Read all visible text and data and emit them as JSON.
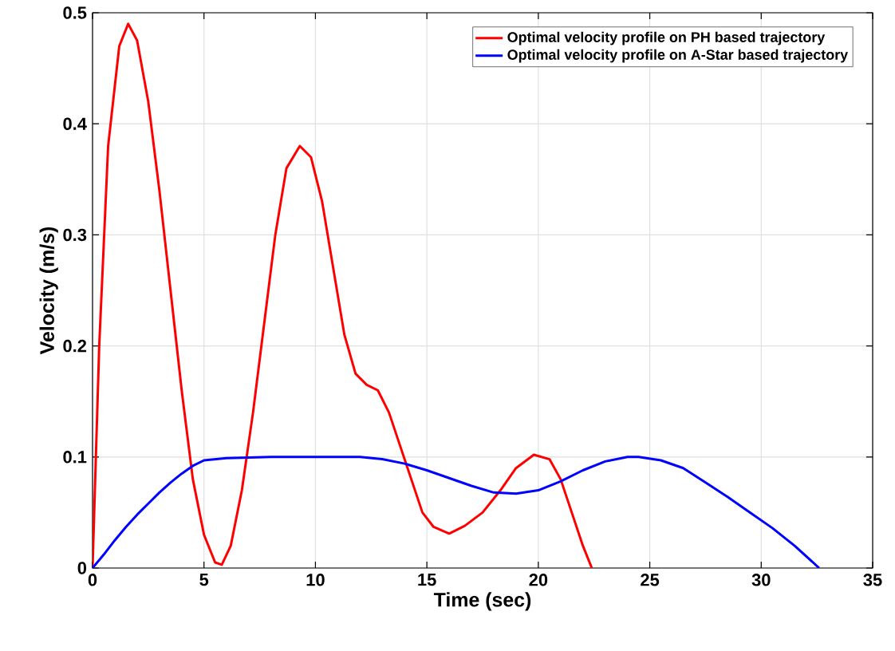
{
  "chart_data": {
    "type": "line",
    "xlabel": "Time (sec)",
    "ylabel": "Velocity (m/s)",
    "xlim": [
      0,
      35
    ],
    "ylim": [
      0,
      0.5
    ],
    "xticks": [
      0,
      5,
      10,
      15,
      20,
      25,
      30,
      35
    ],
    "yticks": [
      0,
      0.1,
      0.2,
      0.3,
      0.4,
      0.5
    ],
    "grid": true,
    "legend": "top right",
    "marker": "none",
    "line_style": "solid",
    "series": [
      {
        "name": "Optimal velocity profile on PH based trajectory",
        "color": "#ff0000",
        "x": [
          0,
          0.3,
          0.7,
          1.2,
          1.6,
          2.0,
          2.5,
          3,
          3.5,
          4,
          4.5,
          5,
          5.5,
          5.8,
          6.2,
          6.7,
          7.2,
          7.7,
          8.2,
          8.7,
          9.3,
          9.8,
          10.3,
          10.8,
          11.3,
          11.8,
          12.3,
          12.8,
          13.3,
          13.8,
          14.3,
          14.8,
          15.3,
          16,
          16.7,
          17.5,
          18.3,
          19,
          19.8,
          20.5,
          21,
          21.5,
          22,
          22.4
        ],
        "values": [
          0,
          0.2,
          0.38,
          0.47,
          0.49,
          0.475,
          0.42,
          0.34,
          0.25,
          0.16,
          0.08,
          0.03,
          0.005,
          0.003,
          0.02,
          0.07,
          0.14,
          0.22,
          0.3,
          0.36,
          0.38,
          0.37,
          0.33,
          0.27,
          0.21,
          0.175,
          0.165,
          0.16,
          0.14,
          0.11,
          0.08,
          0.05,
          0.037,
          0.031,
          0.038,
          0.05,
          0.07,
          0.09,
          0.102,
          0.098,
          0.08,
          0.05,
          0.02,
          0
        ]
      },
      {
        "name": "Optimal velocity profile on A-Star based trajectory",
        "color": "#0000ff",
        "x": [
          0,
          0.5,
          1,
          1.5,
          2,
          2.5,
          3,
          3.5,
          4,
          4.5,
          5,
          6,
          8,
          10,
          12,
          13,
          14,
          15,
          16,
          17,
          18,
          19,
          20,
          21,
          22,
          23,
          24,
          24.5,
          25.5,
          26.5,
          27.5,
          28.5,
          29.5,
          30.5,
          31.5,
          32.6
        ],
        "values": [
          0,
          0.012,
          0.025,
          0.037,
          0.048,
          0.058,
          0.068,
          0.077,
          0.085,
          0.092,
          0.097,
          0.099,
          0.1,
          0.1,
          0.1,
          0.098,
          0.094,
          0.088,
          0.081,
          0.074,
          0.068,
          0.067,
          0.07,
          0.078,
          0.088,
          0.096,
          0.1,
          0.1,
          0.097,
          0.09,
          0.077,
          0.064,
          0.05,
          0.036,
          0.02,
          0
        ]
      }
    ]
  }
}
